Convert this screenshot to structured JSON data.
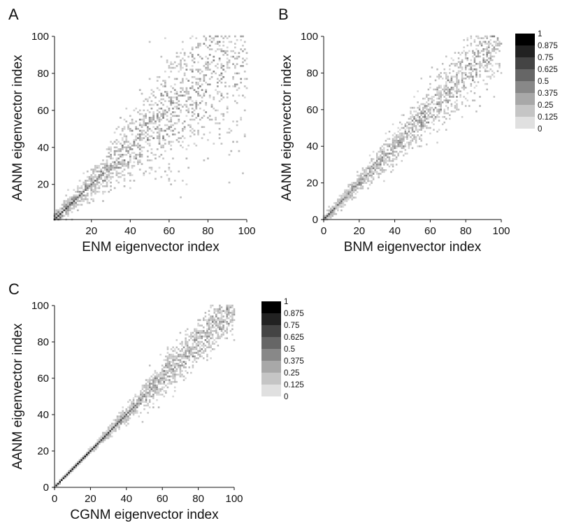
{
  "chart_data": [
    {
      "type": "heatmap",
      "panel_label": "A",
      "xlabel": "ENM eigenvector index",
      "ylabel": "AANM eigenvector index",
      "xlim": [
        1,
        100
      ],
      "ylim": [
        1,
        100
      ],
      "xticks": [
        20,
        40,
        60,
        80,
        100
      ],
      "yticks": [
        20,
        40,
        60,
        80,
        100
      ],
      "grid": false,
      "legend": "none",
      "cells": [
        [
          1,
          1,
          0.85
        ],
        [
          2,
          2,
          0.75
        ],
        [
          3,
          3,
          0.8
        ],
        [
          4,
          4,
          0.85
        ],
        [
          5,
          5,
          0.75
        ],
        [
          2,
          4,
          0.6
        ],
        [
          4,
          2,
          0.55
        ],
        [
          1,
          3,
          0.5
        ],
        [
          3,
          1,
          0.55
        ],
        [
          5,
          3,
          0.45
        ],
        [
          3,
          5,
          0.5
        ],
        [
          6,
          6,
          0.7
        ],
        [
          7,
          7,
          0.75
        ],
        [
          6,
          8,
          0.45
        ],
        [
          8,
          6,
          0.4
        ],
        [
          8,
          8,
          0.65
        ],
        [
          9,
          9,
          0.6
        ],
        [
          10,
          10,
          0.75
        ],
        [
          11,
          11,
          0.7
        ],
        [
          10,
          12,
          0.5
        ],
        [
          12,
          10,
          0.45
        ],
        [
          12,
          12,
          0.6
        ],
        [
          13,
          13,
          0.55
        ],
        [
          14,
          14,
          0.7
        ],
        [
          15,
          15,
          0.6
        ],
        [
          16,
          16,
          0.55
        ],
        [
          14,
          16,
          0.4
        ],
        [
          16,
          14,
          0.45
        ],
        [
          17,
          17,
          0.6
        ],
        [
          18,
          18,
          0.55
        ],
        [
          19,
          19,
          0.5
        ],
        [
          20,
          20,
          0.55
        ],
        [
          21,
          21,
          0.5
        ],
        [
          22,
          22,
          0.6
        ],
        [
          23,
          23,
          0.45
        ],
        [
          24,
          24,
          0.5
        ],
        [
          25,
          25,
          0.45
        ],
        [
          26,
          26,
          0.55
        ],
        [
          28,
          28,
          0.5
        ],
        [
          30,
          30,
          0.45
        ],
        [
          32,
          32,
          0.5
        ],
        [
          34,
          34,
          0.4
        ],
        [
          36,
          36,
          0.45
        ],
        [
          38,
          38,
          0.4
        ],
        [
          40,
          40,
          0.35
        ],
        [
          42,
          42,
          0.4
        ],
        [
          45,
          45,
          0.35
        ],
        [
          48,
          48,
          0.3
        ],
        [
          50,
          50,
          0.35
        ],
        [
          55,
          55,
          0.3
        ],
        [
          60,
          60,
          0.25
        ],
        [
          65,
          65,
          0.3
        ],
        [
          70,
          70,
          0.25
        ],
        [
          78,
          78,
          0.25
        ],
        [
          85,
          85,
          0.2
        ],
        [
          92,
          92,
          0.2
        ]
      ],
      "scatter_seed": 11,
      "scatter_count": 1150,
      "spread": [
        {
          "at": 1,
          "sd": 1.5
        },
        {
          "at": 20,
          "sd": 4
        },
        {
          "at": 40,
          "sd": 9
        },
        {
          "at": 60,
          "sd": 16
        },
        {
          "at": 100,
          "sd": 26
        }
      ]
    },
    {
      "type": "heatmap",
      "panel_label": "B",
      "xlabel": "BNM eigenvector index",
      "ylabel": "AANM eigenvector index",
      "xlim": [
        0,
        100
      ],
      "ylim": [
        0,
        100
      ],
      "xticks": [
        0,
        20,
        40,
        60,
        80,
        100
      ],
      "yticks": [
        0,
        20,
        40,
        60,
        80,
        100
      ],
      "grid": false,
      "legend": "right",
      "cells": [
        [
          1,
          1,
          0.8
        ],
        [
          2,
          2,
          0.7
        ],
        [
          3,
          3,
          0.75
        ],
        [
          4,
          4,
          0.65
        ],
        [
          5,
          5,
          0.6
        ],
        [
          6,
          6,
          0.65
        ],
        [
          8,
          8,
          0.6
        ],
        [
          10,
          10,
          0.6
        ],
        [
          11,
          11,
          0.55
        ],
        [
          12,
          12,
          0.5
        ],
        [
          14,
          14,
          0.55
        ],
        [
          16,
          16,
          0.5
        ],
        [
          18,
          18,
          0.5
        ],
        [
          20,
          20,
          0.55
        ],
        [
          22,
          22,
          0.45
        ],
        [
          24,
          24,
          0.5
        ],
        [
          26,
          26,
          0.45
        ],
        [
          28,
          28,
          0.5
        ],
        [
          30,
          30,
          0.45
        ],
        [
          33,
          33,
          0.4
        ],
        [
          35,
          35,
          0.45
        ],
        [
          38,
          38,
          0.4
        ],
        [
          40,
          40,
          0.4
        ],
        [
          44,
          44,
          0.35
        ],
        [
          47,
          47,
          0.4
        ],
        [
          50,
          50,
          0.35
        ],
        [
          53,
          53,
          0.3
        ],
        [
          56,
          56,
          0.35
        ],
        [
          60,
          60,
          0.3
        ],
        [
          64,
          64,
          0.3
        ],
        [
          70,
          70,
          0.25
        ],
        [
          75,
          75,
          0.25
        ],
        [
          80,
          80,
          0.2
        ]
      ],
      "scatter_seed": 23,
      "scatter_count": 1000,
      "spread": [
        {
          "at": 0,
          "sd": 0.8
        },
        {
          "at": 20,
          "sd": 2.5
        },
        {
          "at": 40,
          "sd": 5
        },
        {
          "at": 60,
          "sd": 7
        },
        {
          "at": 100,
          "sd": 11
        }
      ]
    },
    {
      "type": "heatmap",
      "panel_label": "C",
      "xlabel": "CGNM eigenvector index",
      "ylabel": "AANM eigenvector index",
      "xlim": [
        0,
        100
      ],
      "ylim": [
        0,
        100
      ],
      "xticks": [
        0,
        20,
        40,
        60,
        80,
        100
      ],
      "yticks": [
        0,
        20,
        40,
        60,
        80,
        100
      ],
      "grid": false,
      "legend": "right",
      "cells": [
        [
          1,
          1,
          0.9
        ],
        [
          2,
          2,
          0.9
        ],
        [
          3,
          3,
          0.9
        ],
        [
          4,
          4,
          0.9
        ],
        [
          5,
          5,
          0.9
        ],
        [
          6,
          6,
          0.9
        ],
        [
          7,
          7,
          0.9
        ],
        [
          8,
          8,
          0.9
        ],
        [
          9,
          9,
          0.9
        ],
        [
          10,
          10,
          0.9
        ],
        [
          11,
          11,
          0.9
        ],
        [
          12,
          12,
          0.9
        ],
        [
          13,
          13,
          0.9
        ],
        [
          14,
          14,
          0.9
        ],
        [
          15,
          15,
          0.9
        ],
        [
          16,
          16,
          0.9
        ],
        [
          17,
          17,
          0.9
        ],
        [
          18,
          18,
          0.9
        ],
        [
          19,
          19,
          0.9
        ],
        [
          20,
          20,
          0.9
        ],
        [
          21,
          21,
          0.85
        ],
        [
          22,
          22,
          0.85
        ],
        [
          23,
          23,
          0.85
        ],
        [
          24,
          24,
          0.8
        ],
        [
          25,
          25,
          0.7
        ],
        [
          26,
          26,
          0.75
        ],
        [
          27,
          27,
          0.8
        ],
        [
          28,
          28,
          0.8
        ],
        [
          29,
          29,
          0.75
        ],
        [
          30,
          30,
          0.8
        ],
        [
          31,
          31,
          0.75
        ],
        [
          32,
          32,
          0.7
        ],
        [
          33,
          33,
          0.75
        ],
        [
          34,
          34,
          0.7
        ],
        [
          35,
          35,
          0.7
        ],
        [
          36,
          36,
          0.65
        ],
        [
          37,
          37,
          0.7
        ],
        [
          38,
          38,
          0.65
        ],
        [
          39,
          39,
          0.6
        ],
        [
          40,
          40,
          0.65
        ],
        [
          41,
          41,
          0.6
        ],
        [
          42,
          42,
          0.6
        ],
        [
          43,
          43,
          0.55
        ],
        [
          44,
          44,
          0.6
        ],
        [
          45,
          45,
          0.55
        ],
        [
          46,
          46,
          0.5
        ],
        [
          48,
          48,
          0.55
        ],
        [
          50,
          50,
          0.5
        ],
        [
          52,
          52,
          0.45
        ],
        [
          54,
          54,
          0.5
        ],
        [
          56,
          56,
          0.45
        ],
        [
          58,
          58,
          0.45
        ],
        [
          60,
          60,
          0.4
        ],
        [
          62,
          62,
          0.4
        ],
        [
          65,
          65,
          0.4
        ],
        [
          68,
          68,
          0.35
        ],
        [
          70,
          70,
          0.35
        ],
        [
          73,
          73,
          0.3
        ],
        [
          76,
          76,
          0.35
        ],
        [
          80,
          80,
          0.3
        ],
        [
          84,
          84,
          0.25
        ],
        [
          88,
          88,
          0.25
        ],
        [
          92,
          92,
          0.2
        ]
      ],
      "scatter_seed": 37,
      "scatter_count": 820,
      "spread": [
        {
          "at": 0,
          "sd": 0.2
        },
        {
          "at": 25,
          "sd": 0.8
        },
        {
          "at": 40,
          "sd": 2.5
        },
        {
          "at": 60,
          "sd": 5
        },
        {
          "at": 100,
          "sd": 7.5
        }
      ]
    }
  ],
  "colorbar": {
    "labels": [
      "1",
      "0.875",
      "0.75",
      "0.625",
      "0.5",
      "0.375",
      "0.25",
      "0.125",
      "0"
    ],
    "colors": [
      "#000000",
      "#222222",
      "#444444",
      "#666666",
      "#888888",
      "#a8a8a8",
      "#c5c5c5",
      "#e0e0e0"
    ]
  }
}
